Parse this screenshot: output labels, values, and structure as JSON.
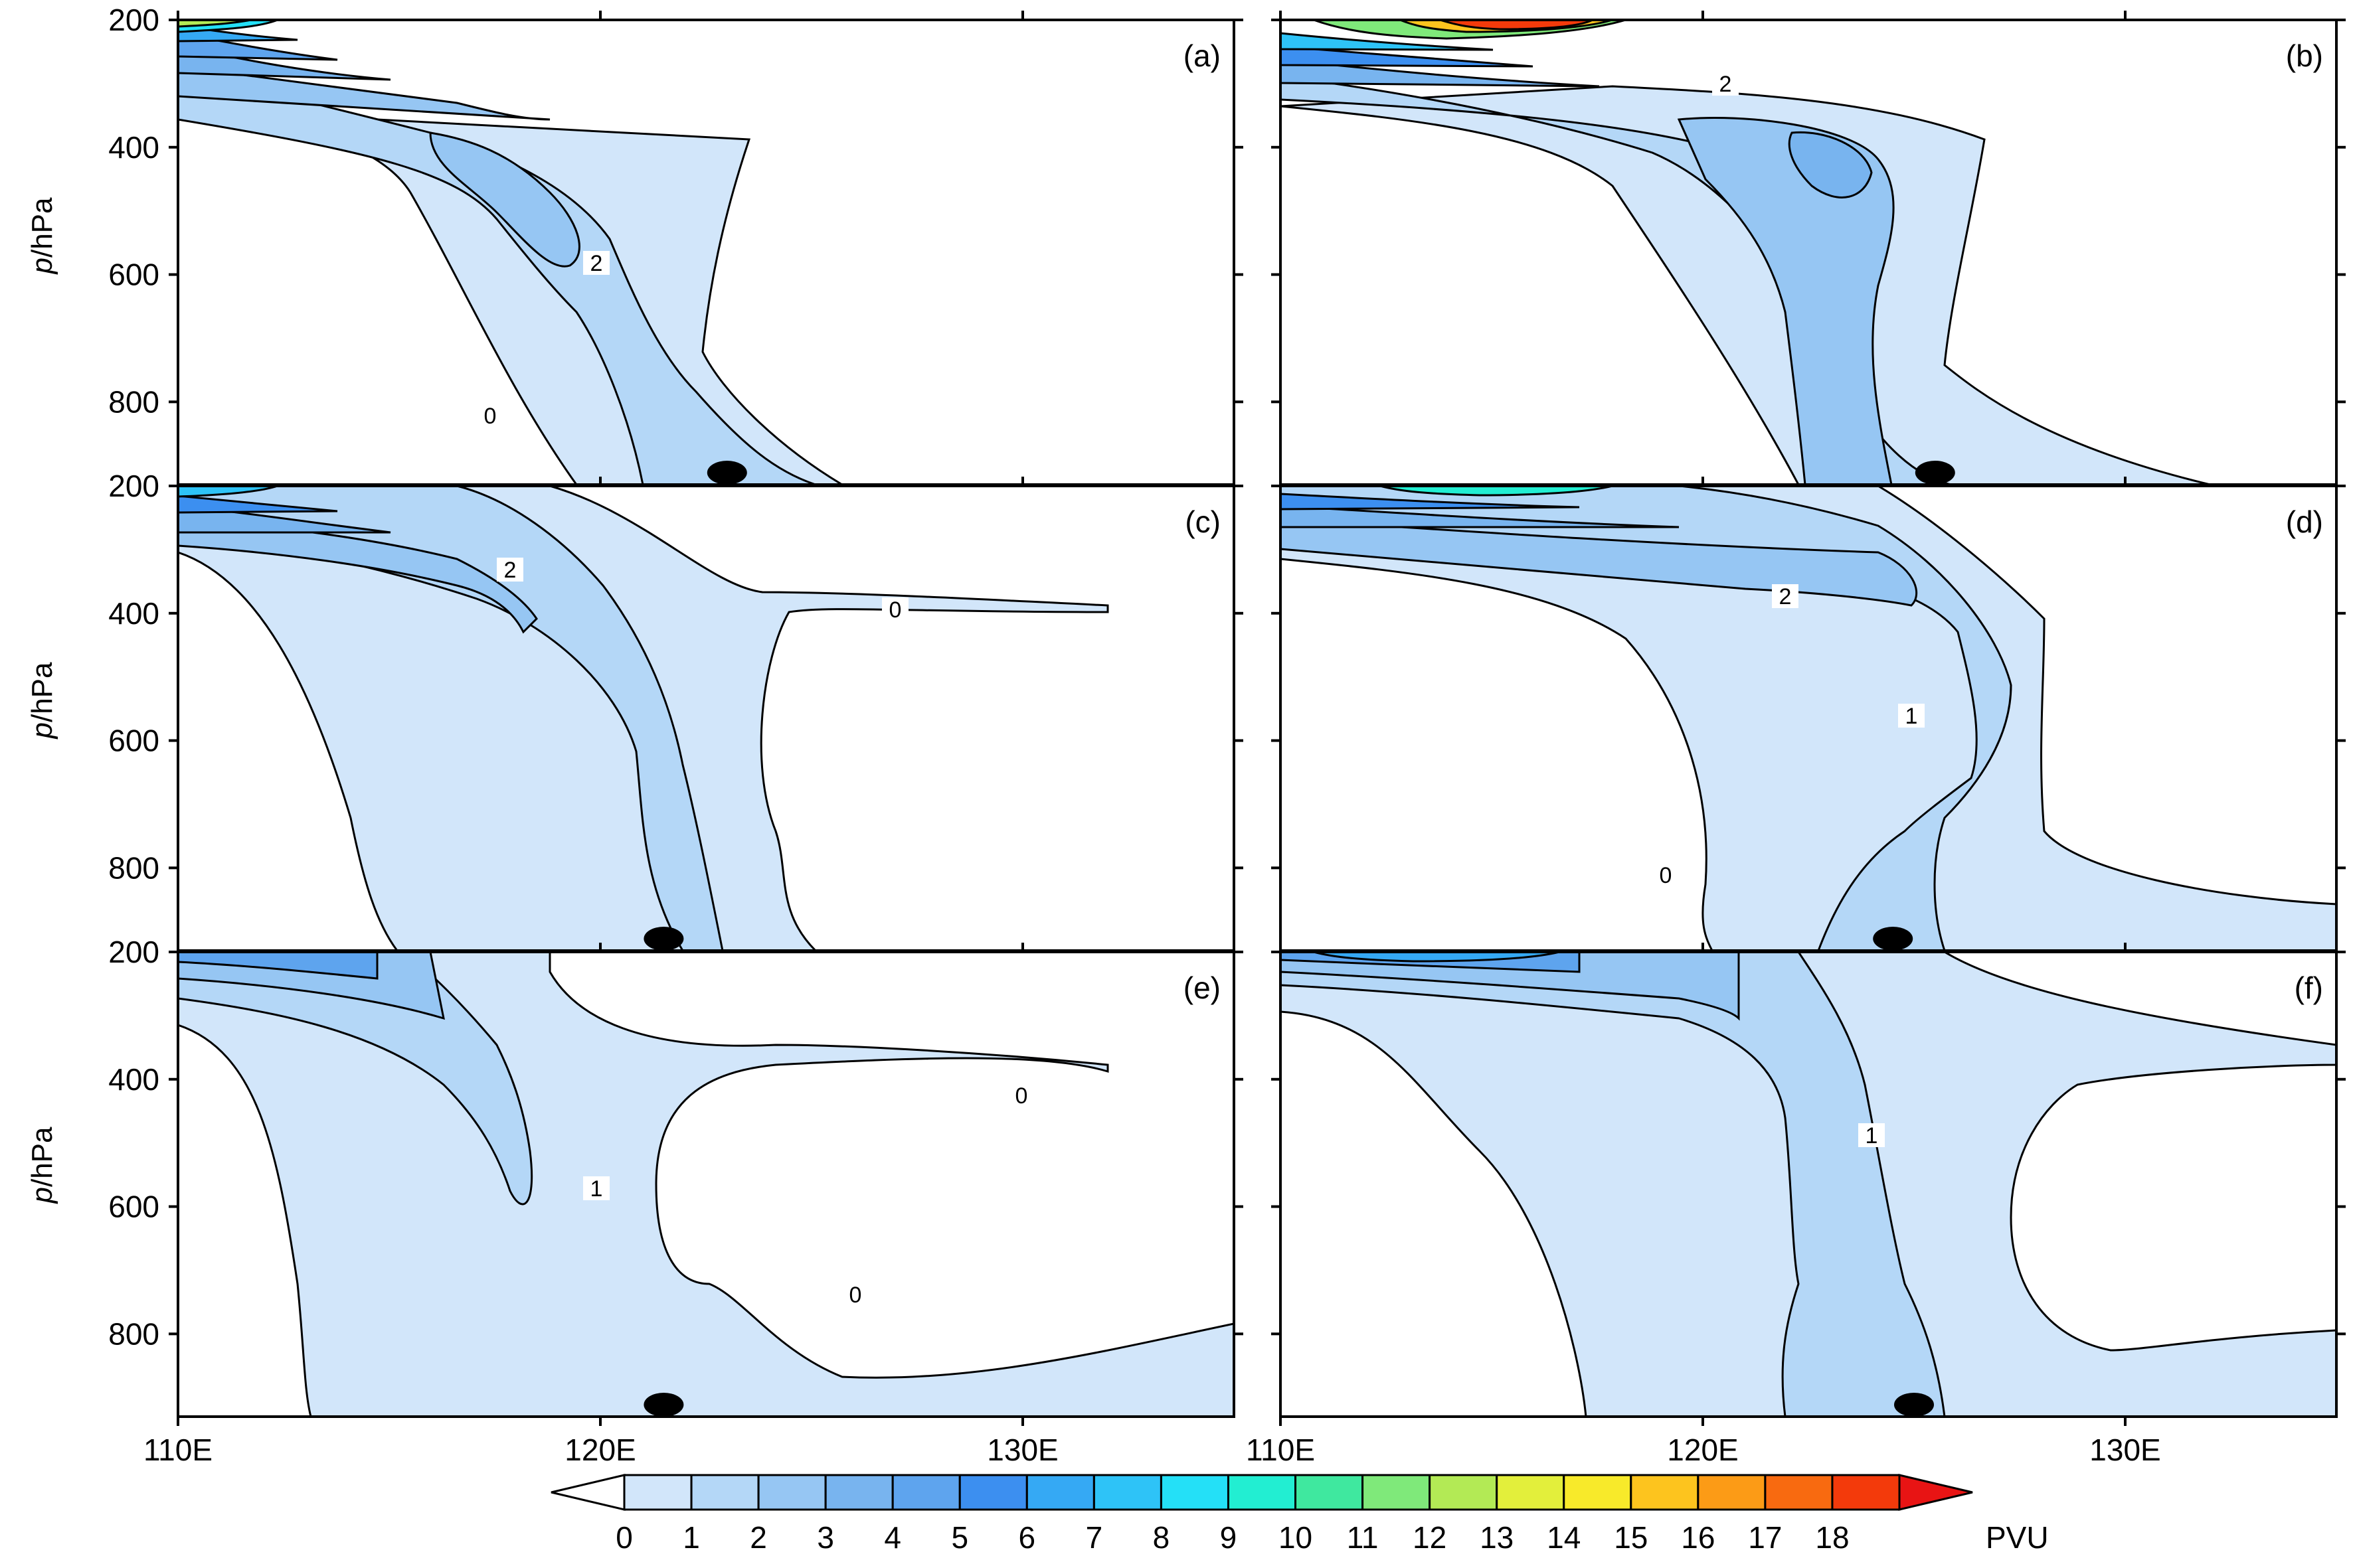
{
  "chart_data": {
    "type": "contour",
    "x_tick_labels": [
      "110E",
      "120E",
      "130E"
    ],
    "x_ticks": [
      110,
      120,
      130
    ],
    "xlim": [
      110,
      135
    ],
    "y_tick_labels": [
      "200",
      "400",
      "600",
      "800"
    ],
    "y_ticks": [
      200,
      400,
      600,
      800
    ],
    "ylim": [
      200,
      930
    ],
    "ylabel_italic": "p",
    "ylabel_rest": "/hPa",
    "colorbar": {
      "labels": [
        "0",
        "1",
        "2",
        "3",
        "4",
        "5",
        "6",
        "7",
        "8",
        "9",
        "10",
        "11",
        "12",
        "13",
        "14",
        "15",
        "16",
        "17",
        "18"
      ],
      "unit": "PVU",
      "colors": [
        "#ffffff",
        "#d2e6fa",
        "#b4d7f7",
        "#96c6f3",
        "#78b4ef",
        "#5ea4ee",
        "#3c8ff0",
        "#35a9f4",
        "#2ec3f7",
        "#24e0f7",
        "#22eed2",
        "#3fe89f",
        "#7fe97a",
        "#b3ea55",
        "#e3ef3b",
        "#f8ea2a",
        "#fdc41e",
        "#fc9b16",
        "#f86a10",
        "#f33a0b",
        "#e81414"
      ]
    },
    "panels": [
      {
        "label": "(a)",
        "contour_labels": [
          "2",
          "0"
        ],
        "marker_lon": 123.0
      },
      {
        "label": "(b)",
        "contour_labels": [
          "2"
        ],
        "marker_lon": 125.5
      },
      {
        "label": "(c)",
        "contour_labels": [
          "2",
          "0"
        ],
        "marker_lon": 121.5
      },
      {
        "label": "(d)",
        "contour_labels": [
          "2",
          "1",
          "0"
        ],
        "marker_lon": 124.5
      },
      {
        "label": "(e)",
        "contour_labels": [
          "0",
          "1",
          "0"
        ],
        "marker_lon": 121.5
      },
      {
        "label": "(f)",
        "contour_labels": [
          "1"
        ],
        "marker_lon": 125.0
      }
    ]
  }
}
